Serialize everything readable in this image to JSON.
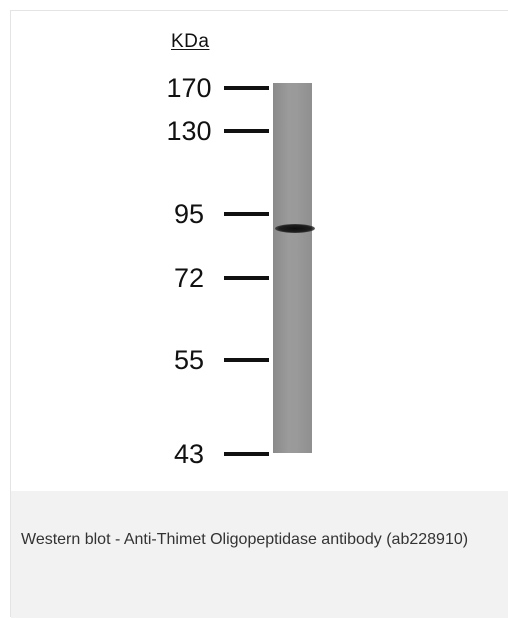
{
  "figure": {
    "unit_label": "KDa",
    "markers": [
      "170",
      "130",
      "95",
      "72",
      "55",
      "43"
    ]
  },
  "caption": {
    "text": "Western blot - Anti-Thimet Oligopeptidase antibody (ab228910)"
  }
}
